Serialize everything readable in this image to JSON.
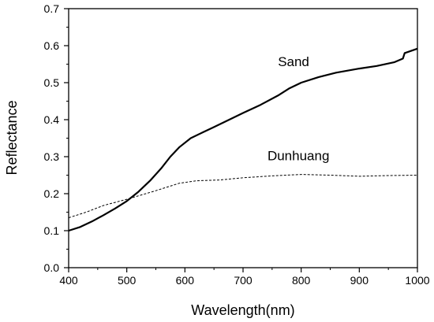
{
  "chart_data": {
    "type": "line",
    "xlabel": "Wavelength(nm)",
    "ylabel": "Reflectance",
    "xlim": [
      400,
      1000
    ],
    "ylim": [
      0.0,
      0.7
    ],
    "xticks": [
      "400",
      "500",
      "600",
      "700",
      "800",
      "900",
      "1000"
    ],
    "yticks": [
      "0.0",
      "0.1",
      "0.2",
      "0.3",
      "0.4",
      "0.5",
      "0.6",
      "0.7"
    ],
    "grid": false,
    "legend": "none",
    "series": [
      {
        "name": "Sand",
        "style": "solid",
        "color": "#000000",
        "points": [
          [
            400,
            0.1
          ],
          [
            420,
            0.11
          ],
          [
            440,
            0.125
          ],
          [
            460,
            0.142
          ],
          [
            480,
            0.16
          ],
          [
            500,
            0.18
          ],
          [
            520,
            0.205
          ],
          [
            540,
            0.235
          ],
          [
            560,
            0.27
          ],
          [
            575,
            0.3
          ],
          [
            590,
            0.325
          ],
          [
            610,
            0.35
          ],
          [
            630,
            0.365
          ],
          [
            650,
            0.38
          ],
          [
            670,
            0.395
          ],
          [
            700,
            0.418
          ],
          [
            730,
            0.44
          ],
          [
            760,
            0.465
          ],
          [
            780,
            0.485
          ],
          [
            800,
            0.5
          ],
          [
            830,
            0.515
          ],
          [
            860,
            0.527
          ],
          [
            900,
            0.538
          ],
          [
            930,
            0.545
          ],
          [
            960,
            0.555
          ],
          [
            975,
            0.565
          ],
          [
            978,
            0.58
          ],
          [
            1000,
            0.592
          ]
        ]
      },
      {
        "name": "Dunhuang",
        "style": "dashed",
        "color": "#000000",
        "points": [
          [
            400,
            0.135
          ],
          [
            430,
            0.15
          ],
          [
            460,
            0.168
          ],
          [
            500,
            0.185
          ],
          [
            550,
            0.208
          ],
          [
            590,
            0.228
          ],
          [
            620,
            0.235
          ],
          [
            660,
            0.237
          ],
          [
            700,
            0.243
          ],
          [
            750,
            0.248
          ],
          [
            800,
            0.252
          ],
          [
            850,
            0.25
          ],
          [
            900,
            0.247
          ],
          [
            950,
            0.249
          ],
          [
            1000,
            0.25
          ]
        ]
      }
    ],
    "annotations": [
      {
        "text": "Sand",
        "x": 760,
        "y": 0.545
      },
      {
        "text": "Dunhuang",
        "x": 742,
        "y": 0.29
      }
    ]
  }
}
